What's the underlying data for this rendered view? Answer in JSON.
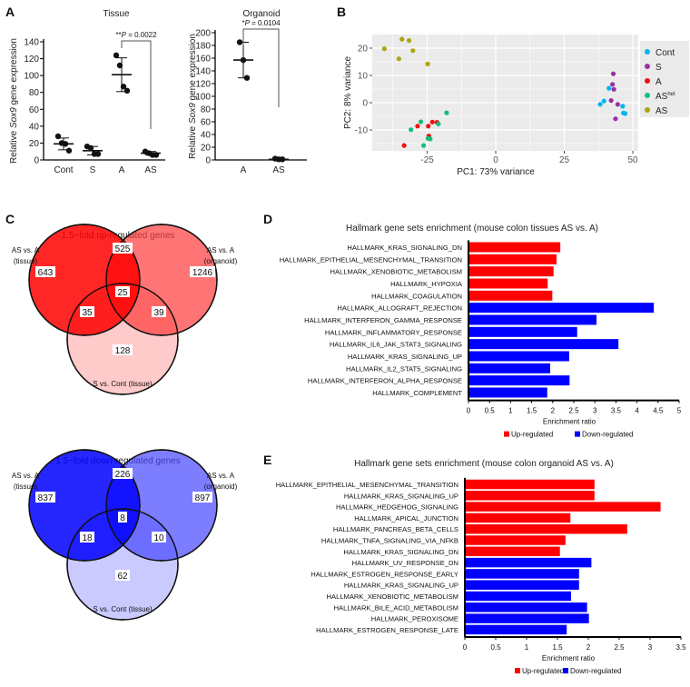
{
  "panel_labels": {
    "a": "A",
    "b": "B",
    "c": "C",
    "d": "D",
    "e": "E"
  },
  "chart_data": [
    {
      "id": "A_tissue",
      "type": "scatter",
      "title": "Tissue",
      "ylabel_parts": [
        "Relative ",
        "Sox9",
        " gene expression"
      ],
      "categories": [
        "Cont",
        "S",
        "A",
        "AS"
      ],
      "ylim": [
        0,
        140
      ],
      "yticks": [
        0,
        20,
        40,
        60,
        80,
        100,
        120,
        140
      ],
      "points": [
        [
          28,
          20,
          19,
          11
        ],
        [
          16,
          14,
          7,
          7
        ],
        [
          124,
          112,
          87,
          82
        ],
        [
          10,
          8,
          6,
          6
        ]
      ],
      "mean": [
        19,
        11,
        101,
        8
      ],
      "sd": [
        7,
        5,
        20,
        2
      ],
      "annotation_stars": "**",
      "annotation_p": "P",
      "annotation_value": " = 0.0022"
    },
    {
      "id": "A_organoid",
      "type": "scatter",
      "title": "Organoid",
      "ylabel_parts": [
        "Relative ",
        "Sox9",
        " gene expression"
      ],
      "categories": [
        "A",
        "AS"
      ],
      "ylim": [
        0,
        200
      ],
      "yticks": [
        0,
        20,
        40,
        60,
        80,
        100,
        120,
        140,
        160,
        180,
        200
      ],
      "points": [
        [
          185,
          157,
          129
        ],
        [
          2,
          1,
          1
        ]
      ],
      "mean": [
        157,
        1
      ],
      "sd": [
        28,
        0.5
      ],
      "annotation_stars": "*",
      "annotation_p": "P",
      "annotation_value": " = 0.0104"
    },
    {
      "id": "B_pca",
      "type": "scatter",
      "xlabel": "PC1: 73% variance",
      "ylabel": "PC2: 8% variance",
      "xlim": [
        -45,
        52
      ],
      "ylim": [
        -18,
        25
      ],
      "xticks": [
        -25,
        0,
        25,
        50
      ],
      "yticks": [
        -10,
        0,
        10,
        20
      ],
      "legend_position": "right",
      "series": [
        {
          "name": "Cont",
          "sup": "",
          "color": "#00b4f0",
          "points": [
            [
              41.3,
              5.3
            ],
            [
              39.5,
              0.6
            ],
            [
              38.1,
              -0.6
            ],
            [
              46.3,
              -1.3
            ],
            [
              46.6,
              -3.8
            ],
            [
              47.2,
              -4
            ]
          ]
        },
        {
          "name": "S",
          "sup": "",
          "color": "#9b2fa6",
          "points": [
            [
              42.9,
              10.6
            ],
            [
              42.6,
              6.7
            ],
            [
              43.1,
              4.9
            ],
            [
              42.1,
              0.8
            ],
            [
              44.5,
              -0.6
            ],
            [
              43.7,
              -5.9
            ]
          ]
        },
        {
          "name": "A",
          "sup": "",
          "color": "#f01010",
          "points": [
            [
              -28.5,
              -8.6
            ],
            [
              -24.6,
              -8.6
            ],
            [
              -23.1,
              -7.1
            ],
            [
              -21.4,
              -7.2
            ],
            [
              -24.4,
              -12.2
            ],
            [
              -33.4,
              -15.7
            ]
          ]
        },
        {
          "name": "AS",
          "sup": "het",
          "color": "#10c080",
          "points": [
            [
              -17.9,
              -3.7
            ],
            [
              -27.3,
              -7
            ],
            [
              -20.9,
              -7.8
            ],
            [
              -30.9,
              -9.9
            ],
            [
              -24.7,
              -13.1
            ],
            [
              -23.9,
              -13.3
            ],
            [
              -26.3,
              -15.7
            ]
          ]
        },
        {
          "name": "AS",
          "sup": "",
          "color": "#aaa510",
          "points": [
            [
              -40.6,
              19.8
            ],
            [
              -34.2,
              23.3
            ],
            [
              -31.6,
              22.8
            ],
            [
              -30.2,
              19.1
            ],
            [
              -35.3,
              16.1
            ],
            [
              -24.8,
              14.2
            ]
          ]
        }
      ]
    },
    {
      "id": "C_up",
      "type": "venn",
      "title": "1.5−fold up-regulated genes",
      "sets": [
        {
          "line1": "AS vs. A",
          "line2": "(tissue)"
        },
        {
          "line1": "AS vs. A",
          "line2": "(organoid)"
        },
        {
          "line1": "S vs. Cont (tissue)",
          "line2": ""
        }
      ],
      "regions": {
        "tissue_only": "643",
        "tissue_organoid": "525",
        "organoid_only": "1246",
        "all": "25",
        "tissue_s": "35",
        "organoid_s": "39",
        "s_only": "128"
      }
    },
    {
      "id": "C_down",
      "type": "venn",
      "title": "1.5−fold down-regulated genes",
      "sets": [
        {
          "line1": "AS vs. A",
          "line2": "(tissue)"
        },
        {
          "line1": "AS vs. A",
          "line2": "(organoid)"
        },
        {
          "line1": "S vs. Cont (tissue)",
          "line2": ""
        }
      ],
      "regions": {
        "tissue_only": "837",
        "tissue_organoid": "226",
        "organoid_only": "897",
        "all": "8",
        "tissue_s": "18",
        "organoid_s": "10",
        "s_only": "62"
      }
    },
    {
      "id": "D_bar",
      "type": "bar",
      "orientation": "horizontal",
      "title": "Hallmark gene sets enrichment (mouse colon tissues AS vs. A)",
      "xlabel": "Enrichment ratio",
      "xlim": [
        0,
        5
      ],
      "xticks": [
        "0",
        "0.5",
        "1",
        "1.5",
        "2",
        "2.5",
        "3",
        "3.5",
        "4",
        "4.5",
        "5"
      ],
      "categories": [
        "HALLMARK_KRAS_SIGNALING_DN",
        "HALLMARK_EPITHELIAL_MESENCHYMAL_TRANSITION",
        "HALLMARK_XENOBIOTIC_METABOLISM",
        "HALLMARK_HYPOXIA",
        "HALLMARK_COAGULATION",
        "HALLMARK_ALLOGRAFT_REJECTION",
        "HALLMARK_INTERFERON_GAMMA_RESPONSE",
        "HALLMARK_INFLAMMATORY_RESPONSE",
        "HALLMARK_IL6_JAK_STAT3_SIGNALING",
        "HALLMARK_KRAS_SIGNALING_UP",
        "HALLMARK_IL2_STAT5_SIGNALING",
        "HALLMARK_INTERFERON_ALPHA_RESPONSE",
        "HALLMARK_COMPLEMENT"
      ],
      "values": [
        2.18,
        2.09,
        2.02,
        1.88,
        1.99,
        4.4,
        3.04,
        2.58,
        3.56,
        2.39,
        1.94,
        2.4,
        1.87
      ],
      "direction": [
        "up",
        "up",
        "up",
        "up",
        "up",
        "down",
        "down",
        "down",
        "down",
        "down",
        "down",
        "down",
        "down"
      ],
      "legend": [
        {
          "label": "Up-regulated",
          "color": "#ff0000"
        },
        {
          "label": "Down-regulated",
          "color": "#0000ff"
        }
      ]
    },
    {
      "id": "E_bar",
      "type": "bar",
      "orientation": "horizontal",
      "title": "Hallmark gene sets enrichment (mouse colon organoid AS vs. A)",
      "xlabel": "Enrichment ratio",
      "xlim": [
        0,
        3.5
      ],
      "xticks": [
        "0",
        "0.5",
        "1",
        "1.5",
        "2",
        "2.5",
        "3",
        "3.5"
      ],
      "categories": [
        "HALLMARK_EPITHELIAL_MESENCHYMAL_TRANSITION",
        "HALLMARK_KRAS_SIGNALING_UP",
        "HALLMARK_HEDGEHOG_SIGNALING",
        "HALLMARK_APICAL_JUNCTION",
        "HALLMARK_PANCREAS_BETA_CELLS",
        "HALLMARK_TNFA_SIGNALING_VIA_NFKB",
        "HALLMARK_KRAS_SIGNALING_DN",
        "HALLMARK_UV_RESPONSE_DN",
        "HALLMARK_ESTROGEN_RESPONSE_EARLY",
        "HALLMARK_KRAS_SIGNALING_UP",
        "HALLMARK_XENOBIOTIC_METABOLISM",
        "HALLMARK_BILE_ACID_METABOLISM",
        "HALLMARK_PEROXISOME",
        "HALLMARK_ESTROGEN_RESPONSE_LATE"
      ],
      "values": [
        2.1,
        2.1,
        3.17,
        1.71,
        2.63,
        1.63,
        1.54,
        2.05,
        1.85,
        1.85,
        1.72,
        1.98,
        2.01,
        1.65
      ],
      "direction": [
        "up",
        "up",
        "up",
        "up",
        "up",
        "up",
        "up",
        "down",
        "down",
        "down",
        "down",
        "down",
        "down",
        "down"
      ],
      "legend": [
        {
          "label": "Up-regulated",
          "color": "#ff0000"
        },
        {
          "label": "Down-regulated",
          "color": "#0000ff"
        }
      ]
    }
  ]
}
